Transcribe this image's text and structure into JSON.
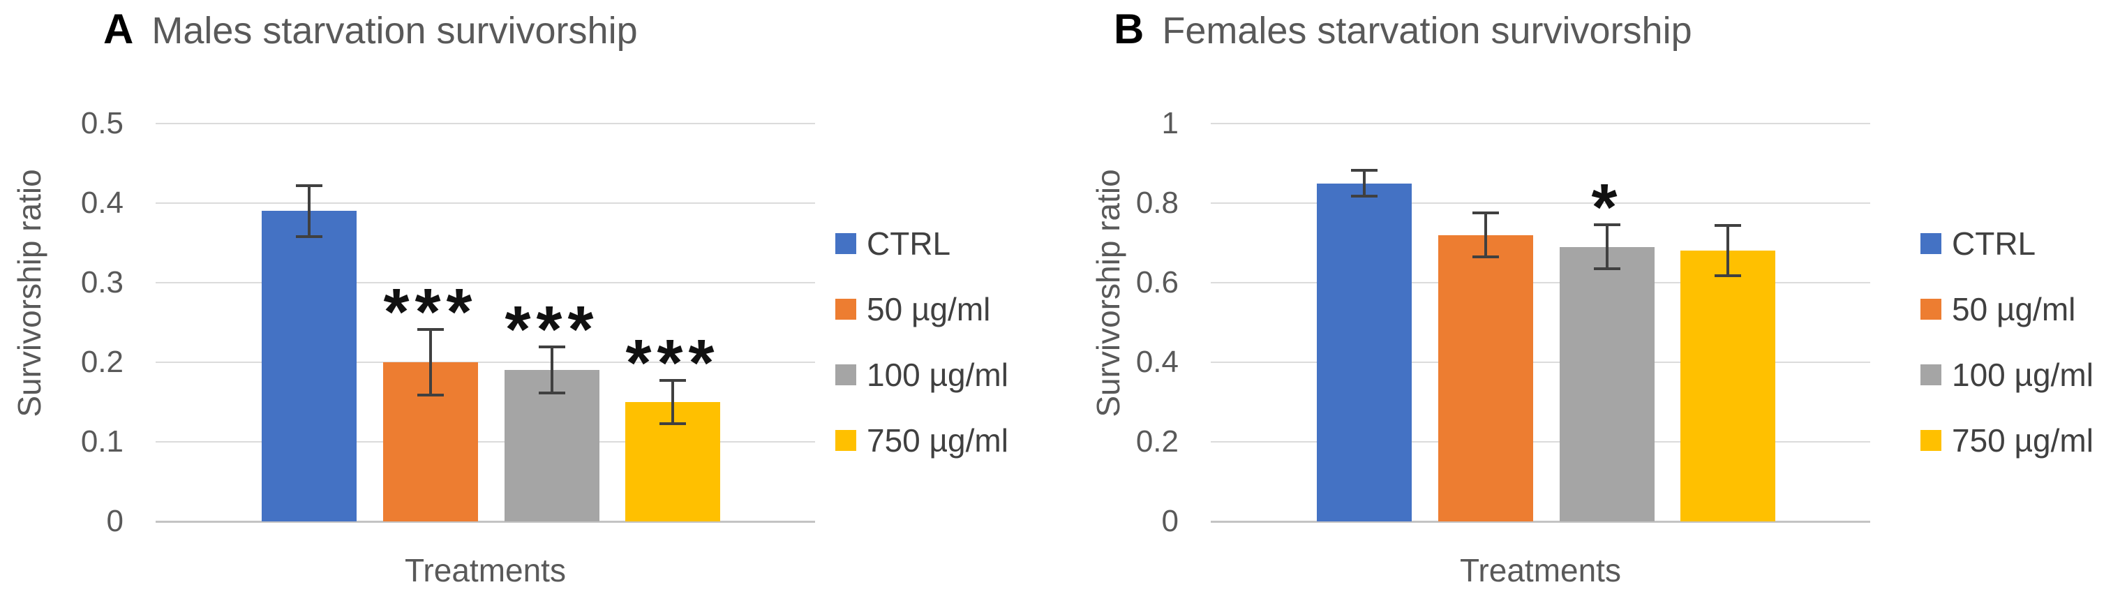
{
  "figure_background": "#ffffff",
  "error_bar_color": "#404040",
  "gridline_color": "#DBDBDB",
  "text_color": "#595959",
  "chart_data": [
    {
      "type": "bar",
      "panel_label": "A",
      "title": "Males starvation survivorship",
      "xlabel": "Treatments",
      "ylabel": "Survivorship ratio",
      "ylim": [
        0,
        0.5
      ],
      "grid": true,
      "legend_position": "right",
      "y_ticks": [
        0.5,
        0.4,
        0.3,
        0.2,
        0.1,
        0
      ],
      "y_tick_labels": [
        "0.5",
        "0.4",
        "0.3",
        "0.2",
        "0.1",
        "0"
      ],
      "categories": [
        "CTRL",
        "50 µg/ml",
        "100 µg/ml",
        "750 µg/ml"
      ],
      "values": [
        0.39,
        0.2,
        0.19,
        0.15
      ],
      "errors": [
        0.032,
        0.041,
        0.029,
        0.027
      ],
      "significance": [
        "",
        "***",
        "***",
        "***"
      ],
      "colors": [
        "#4472C4",
        "#ED7D31",
        "#A5A5A5",
        "#FFC000"
      ],
      "legend": [
        "CTRL",
        "50 µg/ml",
        "100 µg/ml",
        "750 µg/ml"
      ]
    },
    {
      "type": "bar",
      "panel_label": "B",
      "title": "Females starvation survivorship",
      "xlabel": "Treatments",
      "ylabel": "Survivorship ratio",
      "ylim": [
        0,
        1
      ],
      "grid": true,
      "legend_position": "right",
      "y_ticks": [
        1,
        0.8,
        0.6,
        0.4,
        0.2,
        0
      ],
      "y_tick_labels": [
        "1",
        "0.8",
        "0.6",
        "0.4",
        "0.2",
        "0"
      ],
      "categories": [
        "CTRL",
        "50 µg/ml",
        "100 µg/ml",
        "750 µg/ml"
      ],
      "values": [
        0.85,
        0.72,
        0.69,
        0.68
      ],
      "errors": [
        0.033,
        0.055,
        0.055,
        0.063
      ],
      "significance": [
        "",
        "",
        "*",
        ""
      ],
      "colors": [
        "#4472C4",
        "#ED7D31",
        "#A5A5A5",
        "#FFC000"
      ],
      "legend": [
        "CTRL",
        "50 µg/ml",
        "100 µg/ml",
        "750 µg/ml"
      ]
    }
  ]
}
